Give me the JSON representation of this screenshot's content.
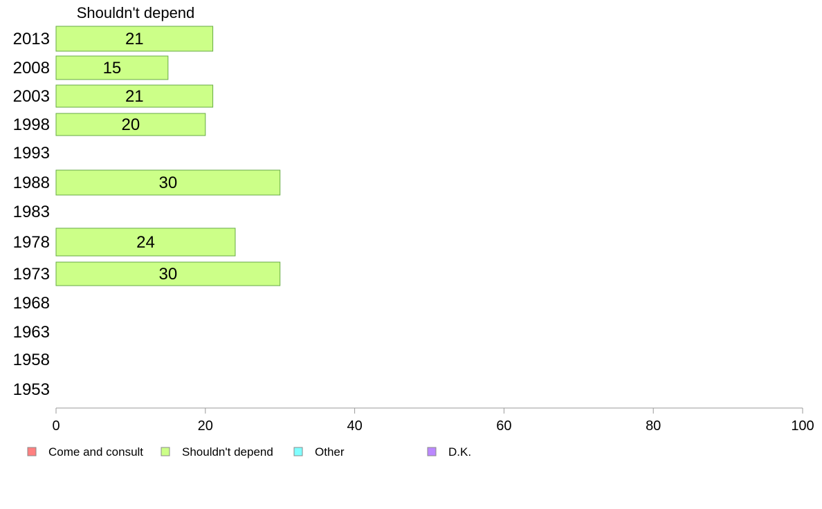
{
  "chart_data": {
    "type": "bar",
    "orientation": "horizontal",
    "stacked": true,
    "categories": [
      "2013",
      "2008",
      "2003",
      "1998",
      "1993",
      "1988",
      "1983",
      "1978",
      "1973",
      "1968",
      "1963",
      "1958",
      "1953"
    ],
    "series": [
      {
        "name": "Come and consult",
        "color": "#ff8080",
        "values": [
          null,
          null,
          null,
          null,
          null,
          null,
          null,
          null,
          null,
          null,
          null,
          null,
          null
        ]
      },
      {
        "name": "Shouldn't depend",
        "color": "#ccff88",
        "values": [
          21,
          15,
          21,
          20,
          null,
          30,
          null,
          24,
          30,
          null,
          null,
          null,
          null
        ]
      },
      {
        "name": "Other",
        "color": "#80ffff",
        "values": [
          null,
          null,
          null,
          null,
          null,
          null,
          null,
          null,
          null,
          null,
          null,
          null,
          null
        ]
      },
      {
        "name": "D.K.",
        "color": "#bb88ff",
        "values": [
          null,
          null,
          null,
          null,
          null,
          null,
          null,
          null,
          null,
          null,
          null,
          null,
          null
        ]
      }
    ],
    "title": "Shouldn't depend",
    "xlim": [
      0,
      100
    ],
    "xticks": [
      0,
      20,
      40,
      60,
      80,
      100
    ],
    "grid": false,
    "legend_position": "bottom",
    "bar_stroke_color": "#66aa44",
    "axis_color": "#999999"
  }
}
